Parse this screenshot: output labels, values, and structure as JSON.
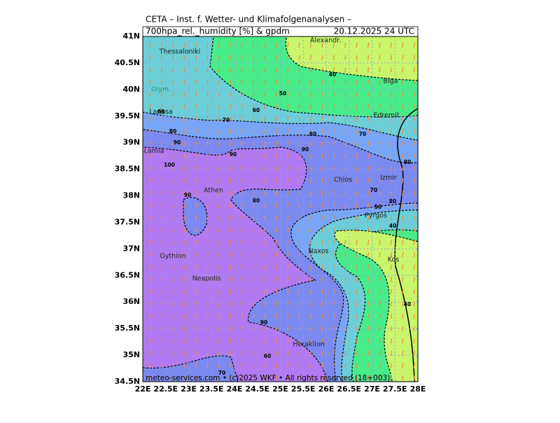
{
  "header": {
    "line1": "CETA – Inst. f. Wetter- und Klimafolgenanalysen –",
    "left": "700hpa_rel._humidity [%] & gpdm",
    "right": "20.12.2025 24 UTC"
  },
  "axes": {
    "x_labels": [
      "22E",
      "22.5E",
      "23E",
      "23.5E",
      "24E",
      "24.5E",
      "25E",
      "25.5E",
      "26E",
      "26.5E",
      "27E",
      "27.5E",
      "28E"
    ],
    "y_labels": [
      "41N",
      "40.5N",
      "40N",
      "39.5N",
      "39N",
      "38.5N",
      "38N",
      "37.5N",
      "37N",
      "36.5N",
      "36N",
      "35.5N",
      "35N",
      "34.5N"
    ]
  },
  "places": [
    "Thessaloniki",
    "Alexandr.",
    "Olym.",
    "Biga",
    "Larissa",
    "Edremit",
    "Lamia",
    "Athen",
    "Chios",
    "Izmir",
    "Pyrgos",
    "Gythion",
    "Naxos",
    "Kos",
    "Neapolis",
    "Heraklion"
  ],
  "contour_labels": [
    40,
    50,
    60,
    70,
    80,
    90,
    60,
    80,
    70,
    90,
    90,
    100,
    80,
    70,
    80,
    50,
    40,
    90,
    80,
    90,
    60,
    70,
    40
  ],
  "footer": "meteo-services.com • (c)2025 WKF • All rights reserved (18+003)"
}
